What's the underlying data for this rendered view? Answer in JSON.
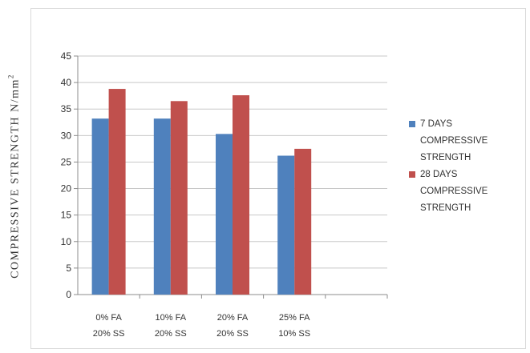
{
  "chart_data": {
    "type": "bar",
    "categories": [
      [
        "0% FA",
        "20% SS"
      ],
      [
        "10% FA",
        "20% SS"
      ],
      [
        "20% FA",
        "20% SS"
      ],
      [
        "25% FA",
        "10% SS"
      ],
      [
        "",
        ""
      ]
    ],
    "series": [
      {
        "name": "7 DAYS COMPRESSIVE STRENGTH",
        "name_lines": [
          "7 DAYS",
          "COMPRESSIVE",
          "STRENGTH"
        ],
        "color": "#4f81bd",
        "values": [
          33.2,
          33.2,
          30.3,
          26.2,
          null
        ]
      },
      {
        "name": "28 DAYS COMPRESSIVE STRENGTH",
        "name_lines": [
          "28 DAYS",
          "COMPRESSIVE",
          "STRENGTH"
        ],
        "color": "#c0504d",
        "values": [
          38.8,
          36.5,
          37.6,
          27.5,
          null
        ]
      }
    ],
    "ylabel": "COMPRESSIVE  STRENGTH  N/mm",
    "ylabel_sup": "2",
    "ylim": [
      0,
      45
    ],
    "yticks": [
      "0",
      "5",
      "10",
      "15",
      "20",
      "25",
      "30",
      "35",
      "40",
      "45"
    ],
    "grid": true,
    "legend_position": "right"
  }
}
